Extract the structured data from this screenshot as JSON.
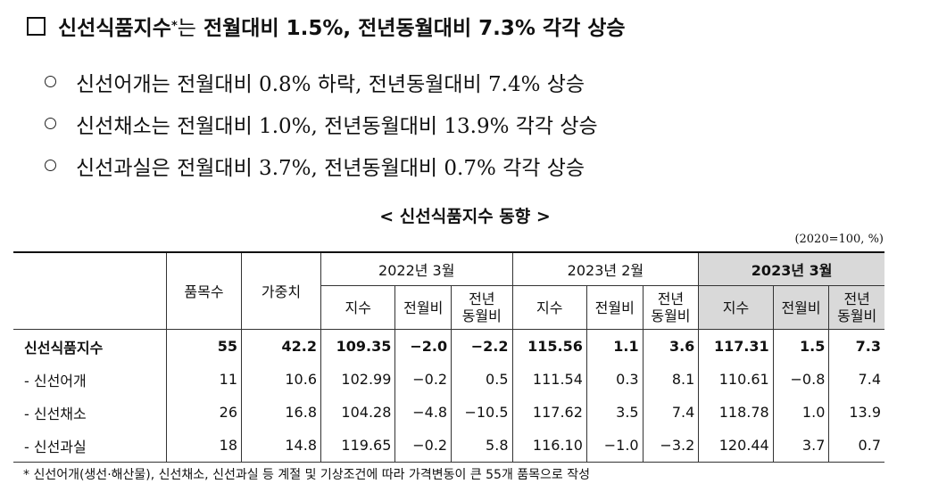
{
  "heading": [
    "신선식품지수",
    "*",
    "는",
    "전월대비 1.5%, 전년동월대비 7.3% 각각 상승"
  ],
  "bullets": [
    "신선어개는 전월대비 0.8% 하락, 전년동월대비 7.4% 상승",
    "신선채소는 전월대비 1.0%, 전년동월대비 13.9% 각각 상승",
    "신선과실은 전월대비 3.7%, 전년동월대비 0.7% 각각 상승"
  ],
  "table": {
    "title": "< 신선식품지수 동향 >",
    "unit": "(2020=100, %)",
    "columns": [
      "품목수",
      "가중치"
    ],
    "periods": [
      "2022년 3월",
      "2023년 2월",
      "2023년 3월"
    ],
    "subcolumns": [
      [
        "지수"
      ],
      [
        "전월비"
      ],
      [
        "전년",
        "동월비"
      ]
    ],
    "rows": [
      [
        "신선식품지수",
        "55",
        "42.2",
        "109.35",
        "−2.0",
        "−2.2",
        "115.56",
        "1.1",
        "3.6",
        "117.31",
        "1.5",
        "7.3"
      ],
      [
        "- 신선어개",
        "11",
        "10.6",
        "102.99",
        "−0.2",
        "0.5",
        "111.54",
        "0.3",
        "8.1",
        "110.61",
        "−0.8",
        "7.4"
      ],
      [
        "- 신선채소",
        "26",
        "16.8",
        "104.28",
        "−4.8",
        "−10.5",
        "117.62",
        "3.5",
        "7.4",
        "118.78",
        "1.0",
        "13.9"
      ],
      [
        "- 신선과실",
        "18",
        "14.8",
        "119.65",
        "−0.2",
        "5.8",
        "116.10",
        "−1.0",
        "−3.2",
        "120.44",
        "3.7",
        "0.7"
      ]
    ]
  },
  "footnote": "* 신선어개(생선·해산물), 신선채소, 신선과실 등 계절 및 기상조건에 따라 가격변동이 큰 55개 품목으로 작성"
}
